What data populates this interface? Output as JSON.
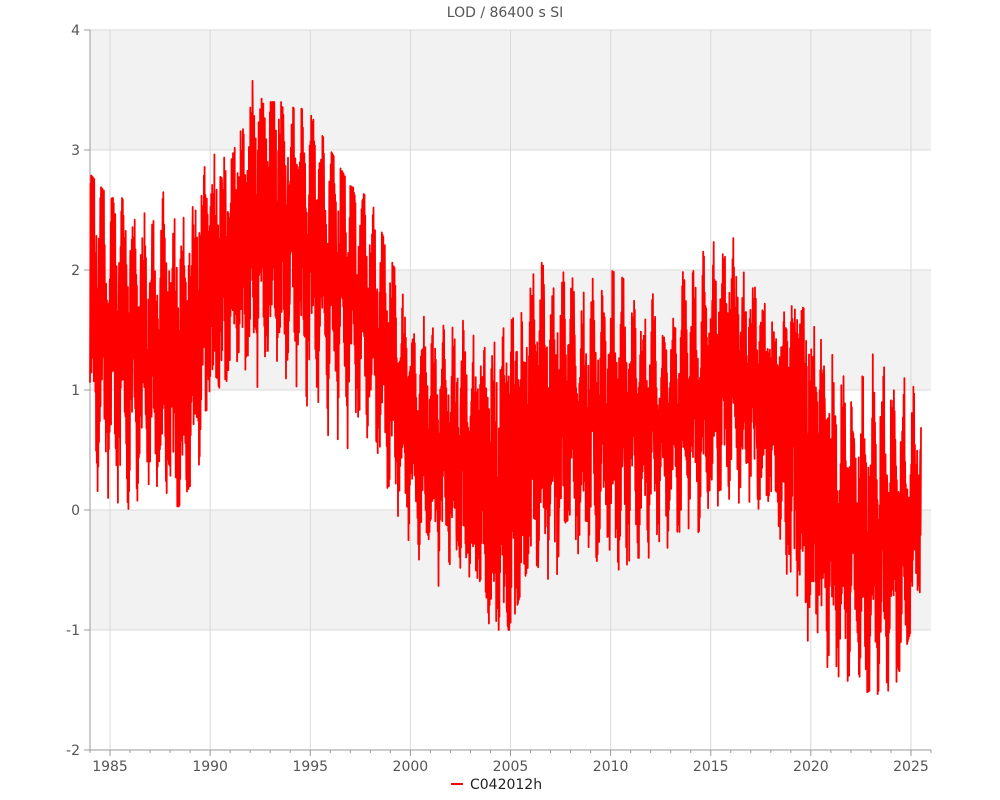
{
  "chart_data": {
    "type": "line",
    "title": "LOD / 86400 s SI",
    "xlabel": "",
    "ylabel": "",
    "xlim": [
      1984.0,
      2026.0
    ],
    "ylim": [
      -2,
      4
    ],
    "x_ticks": [
      1985,
      1990,
      1995,
      2000,
      2005,
      2010,
      2015,
      2020,
      2025
    ],
    "x_tick_labels": [
      "1985",
      "1990",
      "1995",
      "2000",
      "2005",
      "2010",
      "2015",
      "2020",
      "2025"
    ],
    "y_ticks": [
      -2,
      -1,
      0,
      1,
      2,
      3,
      4
    ],
    "y_tick_labels": [
      "-2",
      "-1",
      "0",
      "1",
      "2",
      "3",
      "4"
    ],
    "grid": true,
    "banded_background": true,
    "legend": {
      "position": "bottom-center",
      "entries": [
        "C042012h"
      ]
    },
    "colors": {
      "series": "#ff0000",
      "band": "#f2f2f2",
      "grid": "#d9d9d9",
      "axis": "#999999"
    },
    "series": [
      {
        "name": "C042012h",
        "color": "#ff0000",
        "x": [
          1984.0,
          1985.0,
          1986.0,
          1987.0,
          1988.0,
          1989.0,
          1990.0,
          1991.0,
          1992.0,
          1993.0,
          1994.0,
          1995.0,
          1996.0,
          1997.0,
          1998.0,
          1999.0,
          2000.0,
          2001.0,
          2002.0,
          2003.0,
          2004.0,
          2005.0,
          2006.0,
          2007.0,
          2008.0,
          2009.0,
          2010.0,
          2011.0,
          2012.0,
          2013.0,
          2014.0,
          2015.0,
          2016.0,
          2017.0,
          2018.0,
          2019.0,
          2020.0,
          2021.0,
          2022.0,
          2023.0,
          2024.0,
          2025.0,
          2025.5
        ],
        "y": [
          1.7,
          1.5,
          1.4,
          1.3,
          1.2,
          1.3,
          1.9,
          2.0,
          2.3,
          2.5,
          2.3,
          2.2,
          2.0,
          1.9,
          1.6,
          1.2,
          0.7,
          0.5,
          0.5,
          0.4,
          0.2,
          0.1,
          0.7,
          0.7,
          0.8,
          0.7,
          0.7,
          0.7,
          0.7,
          0.7,
          0.9,
          1.0,
          1.2,
          1.0,
          0.8,
          0.7,
          0.3,
          0.0,
          -0.2,
          -0.3,
          -0.2,
          -0.2,
          0.2
        ],
        "envelope": {
          "upper": [
            2.8,
            2.6,
            2.6,
            2.5,
            2.8,
            2.8,
            3.3,
            3.2,
            3.6,
            3.4,
            3.4,
            3.3,
            3.0,
            2.7,
            2.6,
            2.1,
            1.7,
            1.7,
            1.6,
            1.6,
            1.6,
            2.0,
            2.3,
            2.3,
            2.1,
            2.0,
            2.0,
            1.9,
            1.8,
            1.8,
            2.1,
            2.3,
            2.5,
            2.1,
            1.8,
            1.7,
            1.7,
            1.3,
            1.2,
            1.3,
            1.3,
            1.1,
            0.8
          ],
          "lower": [
            0.1,
            0.1,
            0.0,
            0.0,
            -0.1,
            0.2,
            0.6,
            0.8,
            0.8,
            0.9,
            0.9,
            0.8,
            0.6,
            0.5,
            0.6,
            0.0,
            -0.3,
            -0.6,
            -0.7,
            -0.9,
            -1.0,
            -1.0,
            -0.4,
            -0.6,
            -0.4,
            -0.3,
            -0.7,
            -0.4,
            -0.4,
            -0.3,
            -0.3,
            0.0,
            0.1,
            0.0,
            -0.1,
            -1.0,
            -1.5,
            -1.5,
            -1.6,
            -1.5,
            -1.6,
            -1.0,
            -0.9
          ]
        }
      }
    ]
  }
}
